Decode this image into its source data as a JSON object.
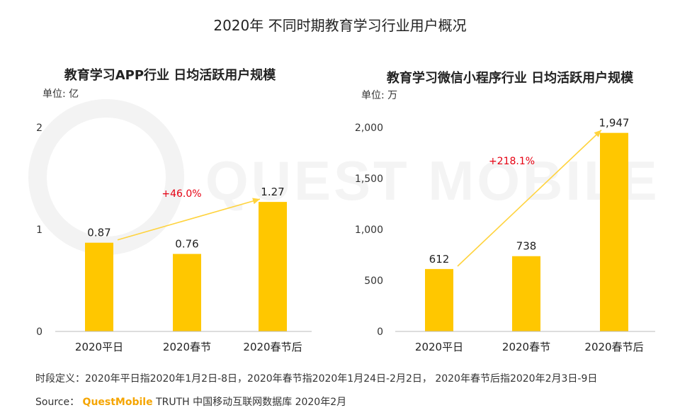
{
  "title": "2020年 不同时期教育学习行业用户概况",
  "watermark": "QUEST MOBILE",
  "colors": {
    "bar": "#FFC700",
    "arrow": "#FFD33D",
    "growth": "#E60012",
    "axis": "#BBBBBB"
  },
  "chart_data": [
    {
      "type": "bar",
      "title": "教育学习APP行业 日均活跃用户规模",
      "unit": "单位: 亿",
      "categories": [
        "2020平日",
        "2020春节",
        "2020春节后"
      ],
      "values": [
        0.87,
        0.76,
        1.27
      ],
      "value_labels": [
        "0.87",
        "0.76",
        "1.27"
      ],
      "ylim": [
        0,
        2
      ],
      "y_ticks": [
        0,
        1,
        2
      ],
      "y_tick_labels": [
        "0",
        "1",
        "2"
      ],
      "growth_label": "+46.0%",
      "arrow": {
        "from": 0,
        "to": 2
      }
    },
    {
      "type": "bar",
      "title": "教育学习微信小程序行业 日均活跃用户规模",
      "unit": "单位: 万",
      "categories": [
        "2020平日",
        "2020春节",
        "2020春节后"
      ],
      "values": [
        612,
        738,
        1947
      ],
      "value_labels": [
        "612",
        "738",
        "1,947"
      ],
      "ylim": [
        0,
        2000
      ],
      "y_ticks": [
        0,
        500,
        1000,
        1500,
        2000
      ],
      "y_tick_labels": [
        "0",
        "500",
        "1,000",
        "1,500",
        "2,000"
      ],
      "growth_label": "+218.1%",
      "arrow": {
        "from": 0,
        "to": 2
      }
    }
  ],
  "footnote": "时段定义：2020年平日指2020年1月2日-8日，2020年春节指2020年1月24日-2月2日， 2020年春节后指2020年2月3日-9日",
  "source": {
    "prefix": "Source：",
    "brand": "QuestMobile",
    "suffix": " TRUTH 中国移动互联网数据库 2020年2月"
  }
}
